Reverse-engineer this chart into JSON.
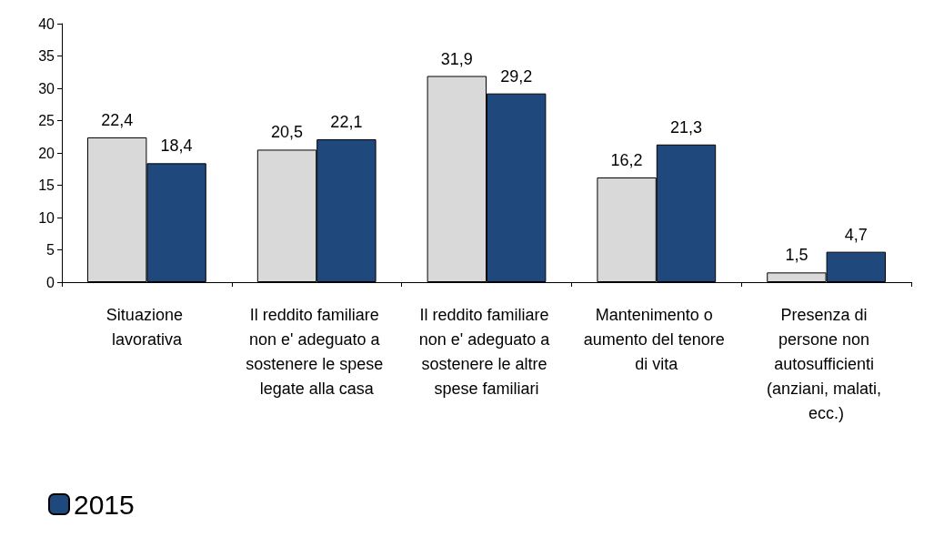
{
  "chart_data": {
    "type": "bar",
    "categories": [
      "Situazione lavorativa",
      "Il reddito familiare non e' adeguato a sostenere le spese legate alla casa",
      "Il reddito familiare non e' adeguato a sostenere le altre spese familiari",
      "Mantenimento o aumento del tenore di vita",
      "Presenza di persone non autosufficienti (anziani, malati, ecc.)"
    ],
    "series": [
      {
        "color": "#d9d9d9",
        "values": [
          22.4,
          20.5,
          31.9,
          16.2,
          1.5
        ],
        "value_labels": [
          "22,4",
          "20,5",
          "31,9",
          "16,2",
          "1,5"
        ]
      },
      {
        "name": "2015",
        "color": "#1f497d",
        "values": [
          18.4,
          22.1,
          29.2,
          21.3,
          4.7
        ],
        "value_labels": [
          "18,4",
          "22,1",
          "29,2",
          "21,3",
          "4,7"
        ]
      }
    ],
    "ylim": [
      0,
      40
    ],
    "yticks": [
      0,
      5,
      10,
      15,
      20,
      25,
      30,
      35,
      40
    ],
    "grid": false,
    "legend": "bottom left"
  }
}
